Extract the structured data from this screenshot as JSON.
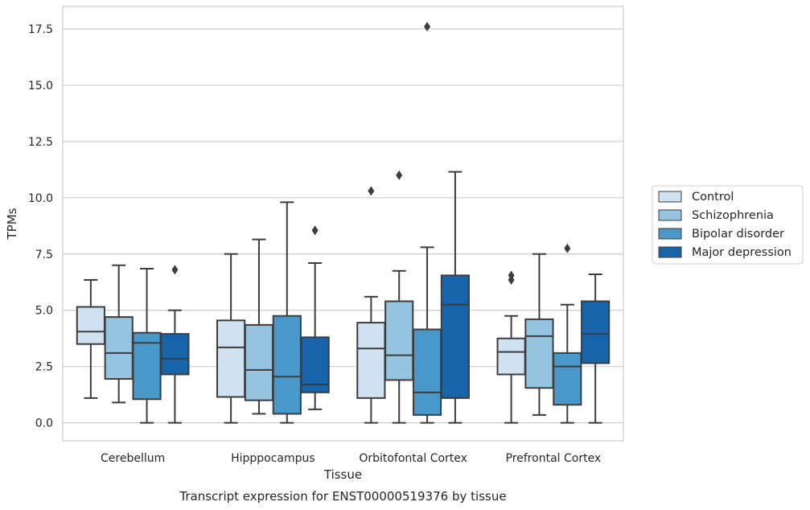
{
  "chart_data": {
    "type": "box",
    "title": "",
    "caption": "Transcript expression for ENST00000519376 by tissue",
    "xlabel": "Tissue",
    "ylabel": "TPMs",
    "ylim": [
      -0.8,
      18.5
    ],
    "yticks": [
      "0.0",
      "2.5",
      "5.0",
      "7.5",
      "10.0",
      "12.5",
      "15.0",
      "17.5"
    ],
    "ytick_values": [
      0,
      2.5,
      5,
      7.5,
      10,
      12.5,
      15,
      17.5
    ],
    "grid": true,
    "legend_position": "right",
    "categories": [
      "Cerebellum",
      "Hipppocampus",
      "Orbitofontal Cortex",
      "Prefrontal Cortex"
    ],
    "series": [
      {
        "name": "Control",
        "color": "#d0e1f2",
        "boxes": [
          {
            "whislo": 1.1,
            "q1": 3.5,
            "med": 4.05,
            "q3": 5.15,
            "whishi": 6.35,
            "fliers": []
          },
          {
            "whislo": 0.0,
            "q1": 1.15,
            "med": 3.35,
            "q3": 4.55,
            "whishi": 7.5,
            "fliers": []
          },
          {
            "whislo": 0.0,
            "q1": 1.1,
            "med": 3.3,
            "q3": 4.45,
            "whishi": 5.6,
            "fliers": [
              10.3
            ]
          },
          {
            "whislo": 0.0,
            "q1": 2.15,
            "med": 3.15,
            "q3": 3.75,
            "whishi": 4.75,
            "fliers": [
              6.35,
              6.55
            ]
          }
        ]
      },
      {
        "name": "Schizophrenia",
        "color": "#94c4df",
        "boxes": [
          {
            "whislo": 0.9,
            "q1": 1.95,
            "med": 3.1,
            "q3": 4.7,
            "whishi": 7.0,
            "fliers": []
          },
          {
            "whislo": 0.4,
            "q1": 1.0,
            "med": 2.35,
            "q3": 4.35,
            "whishi": 8.15,
            "fliers": []
          },
          {
            "whislo": 0.0,
            "q1": 1.9,
            "med": 3.0,
            "q3": 5.4,
            "whishi": 6.75,
            "fliers": [
              11.0
            ]
          },
          {
            "whislo": 0.35,
            "q1": 1.55,
            "med": 3.85,
            "q3": 4.6,
            "whishi": 7.5,
            "fliers": []
          }
        ]
      },
      {
        "name": "Bipolar disorder",
        "color": "#4a98c9",
        "boxes": [
          {
            "whislo": 0.0,
            "q1": 1.05,
            "med": 3.55,
            "q3": 4.0,
            "whishi": 6.85,
            "fliers": []
          },
          {
            "whislo": 0.0,
            "q1": 0.4,
            "med": 2.05,
            "q3": 4.75,
            "whishi": 9.8,
            "fliers": []
          },
          {
            "whislo": 0.0,
            "q1": 0.35,
            "med": 1.35,
            "q3": 4.15,
            "whishi": 7.8,
            "fliers": [
              17.6
            ]
          },
          {
            "whislo": 0.0,
            "q1": 0.8,
            "med": 2.5,
            "q3": 3.1,
            "whishi": 5.25,
            "fliers": [
              7.75
            ]
          }
        ]
      },
      {
        "name": "Major depression",
        "color": "#1764ab",
        "boxes": [
          {
            "whislo": 0.0,
            "q1": 2.15,
            "med": 2.85,
            "q3": 3.95,
            "whishi": 5.0,
            "fliers": [
              6.8
            ]
          },
          {
            "whislo": 0.6,
            "q1": 1.35,
            "med": 1.7,
            "q3": 3.8,
            "whishi": 7.1,
            "fliers": [
              8.55
            ]
          },
          {
            "whislo": 0.0,
            "q1": 1.1,
            "med": 5.25,
            "q3": 6.55,
            "whishi": 11.15,
            "fliers": []
          },
          {
            "whislo": 0.0,
            "q1": 2.65,
            "med": 3.95,
            "q3": 5.4,
            "whishi": 6.6,
            "fliers": []
          }
        ]
      }
    ]
  }
}
